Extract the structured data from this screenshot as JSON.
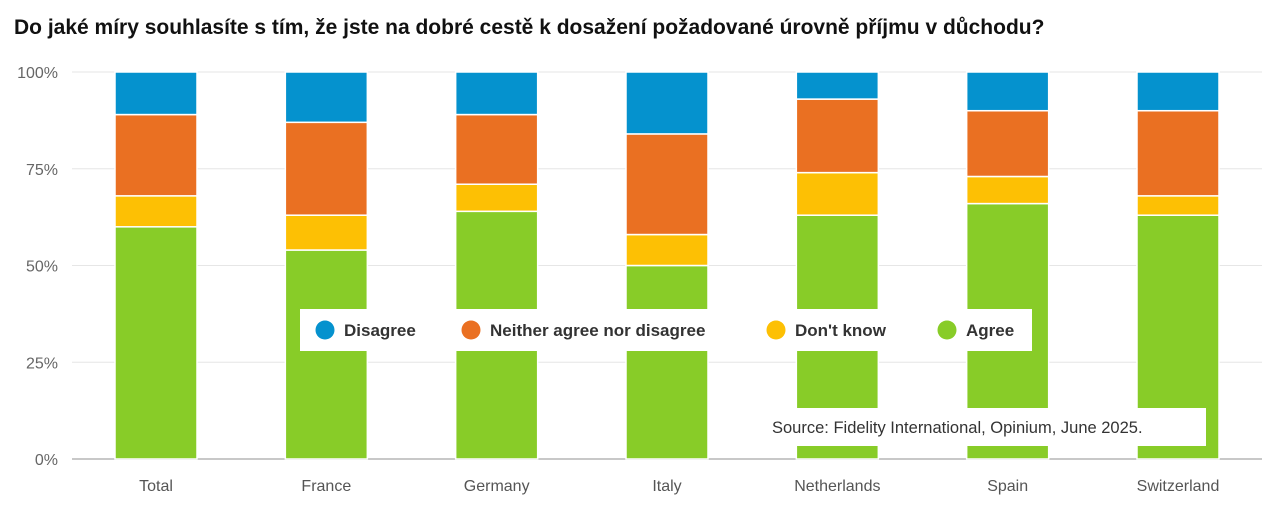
{
  "chart_data": {
    "type": "bar",
    "stacked": true,
    "title": "Do jaké míry souhlasíte s tím, že jste na dobré cestě k dosažení požadované úrovně příjmu v důchodu?",
    "categories": [
      "Total",
      "France",
      "Germany",
      "Italy",
      "Netherlands",
      "Spain",
      "Switzerland"
    ],
    "series": [
      {
        "name": "Agree",
        "color": "#88cc28",
        "values": [
          60,
          54,
          64,
          50,
          63,
          66,
          63
        ]
      },
      {
        "name": "Don't know",
        "color": "#fdc004",
        "values": [
          8,
          9,
          7,
          8,
          11,
          7,
          5
        ]
      },
      {
        "name": "Neither agree nor disagree",
        "color": "#ea7022",
        "values": [
          21,
          24,
          18,
          26,
          19,
          17,
          22
        ]
      },
      {
        "name": "Disagree",
        "color": "#0592ce",
        "values": [
          11,
          13,
          11,
          16,
          7,
          10,
          10
        ]
      }
    ],
    "legend_order": [
      "Disagree",
      "Neither agree nor disagree",
      "Don't know",
      "Agree"
    ],
    "legend_position": "center",
    "yticks": [
      "0%",
      "25%",
      "50%",
      "75%",
      "100%"
    ],
    "ylim": [
      0,
      100
    ],
    "grid": true,
    "xlabel": "",
    "ylabel": ""
  },
  "source": "Source: Fidelity International, Opinium, June 2025."
}
